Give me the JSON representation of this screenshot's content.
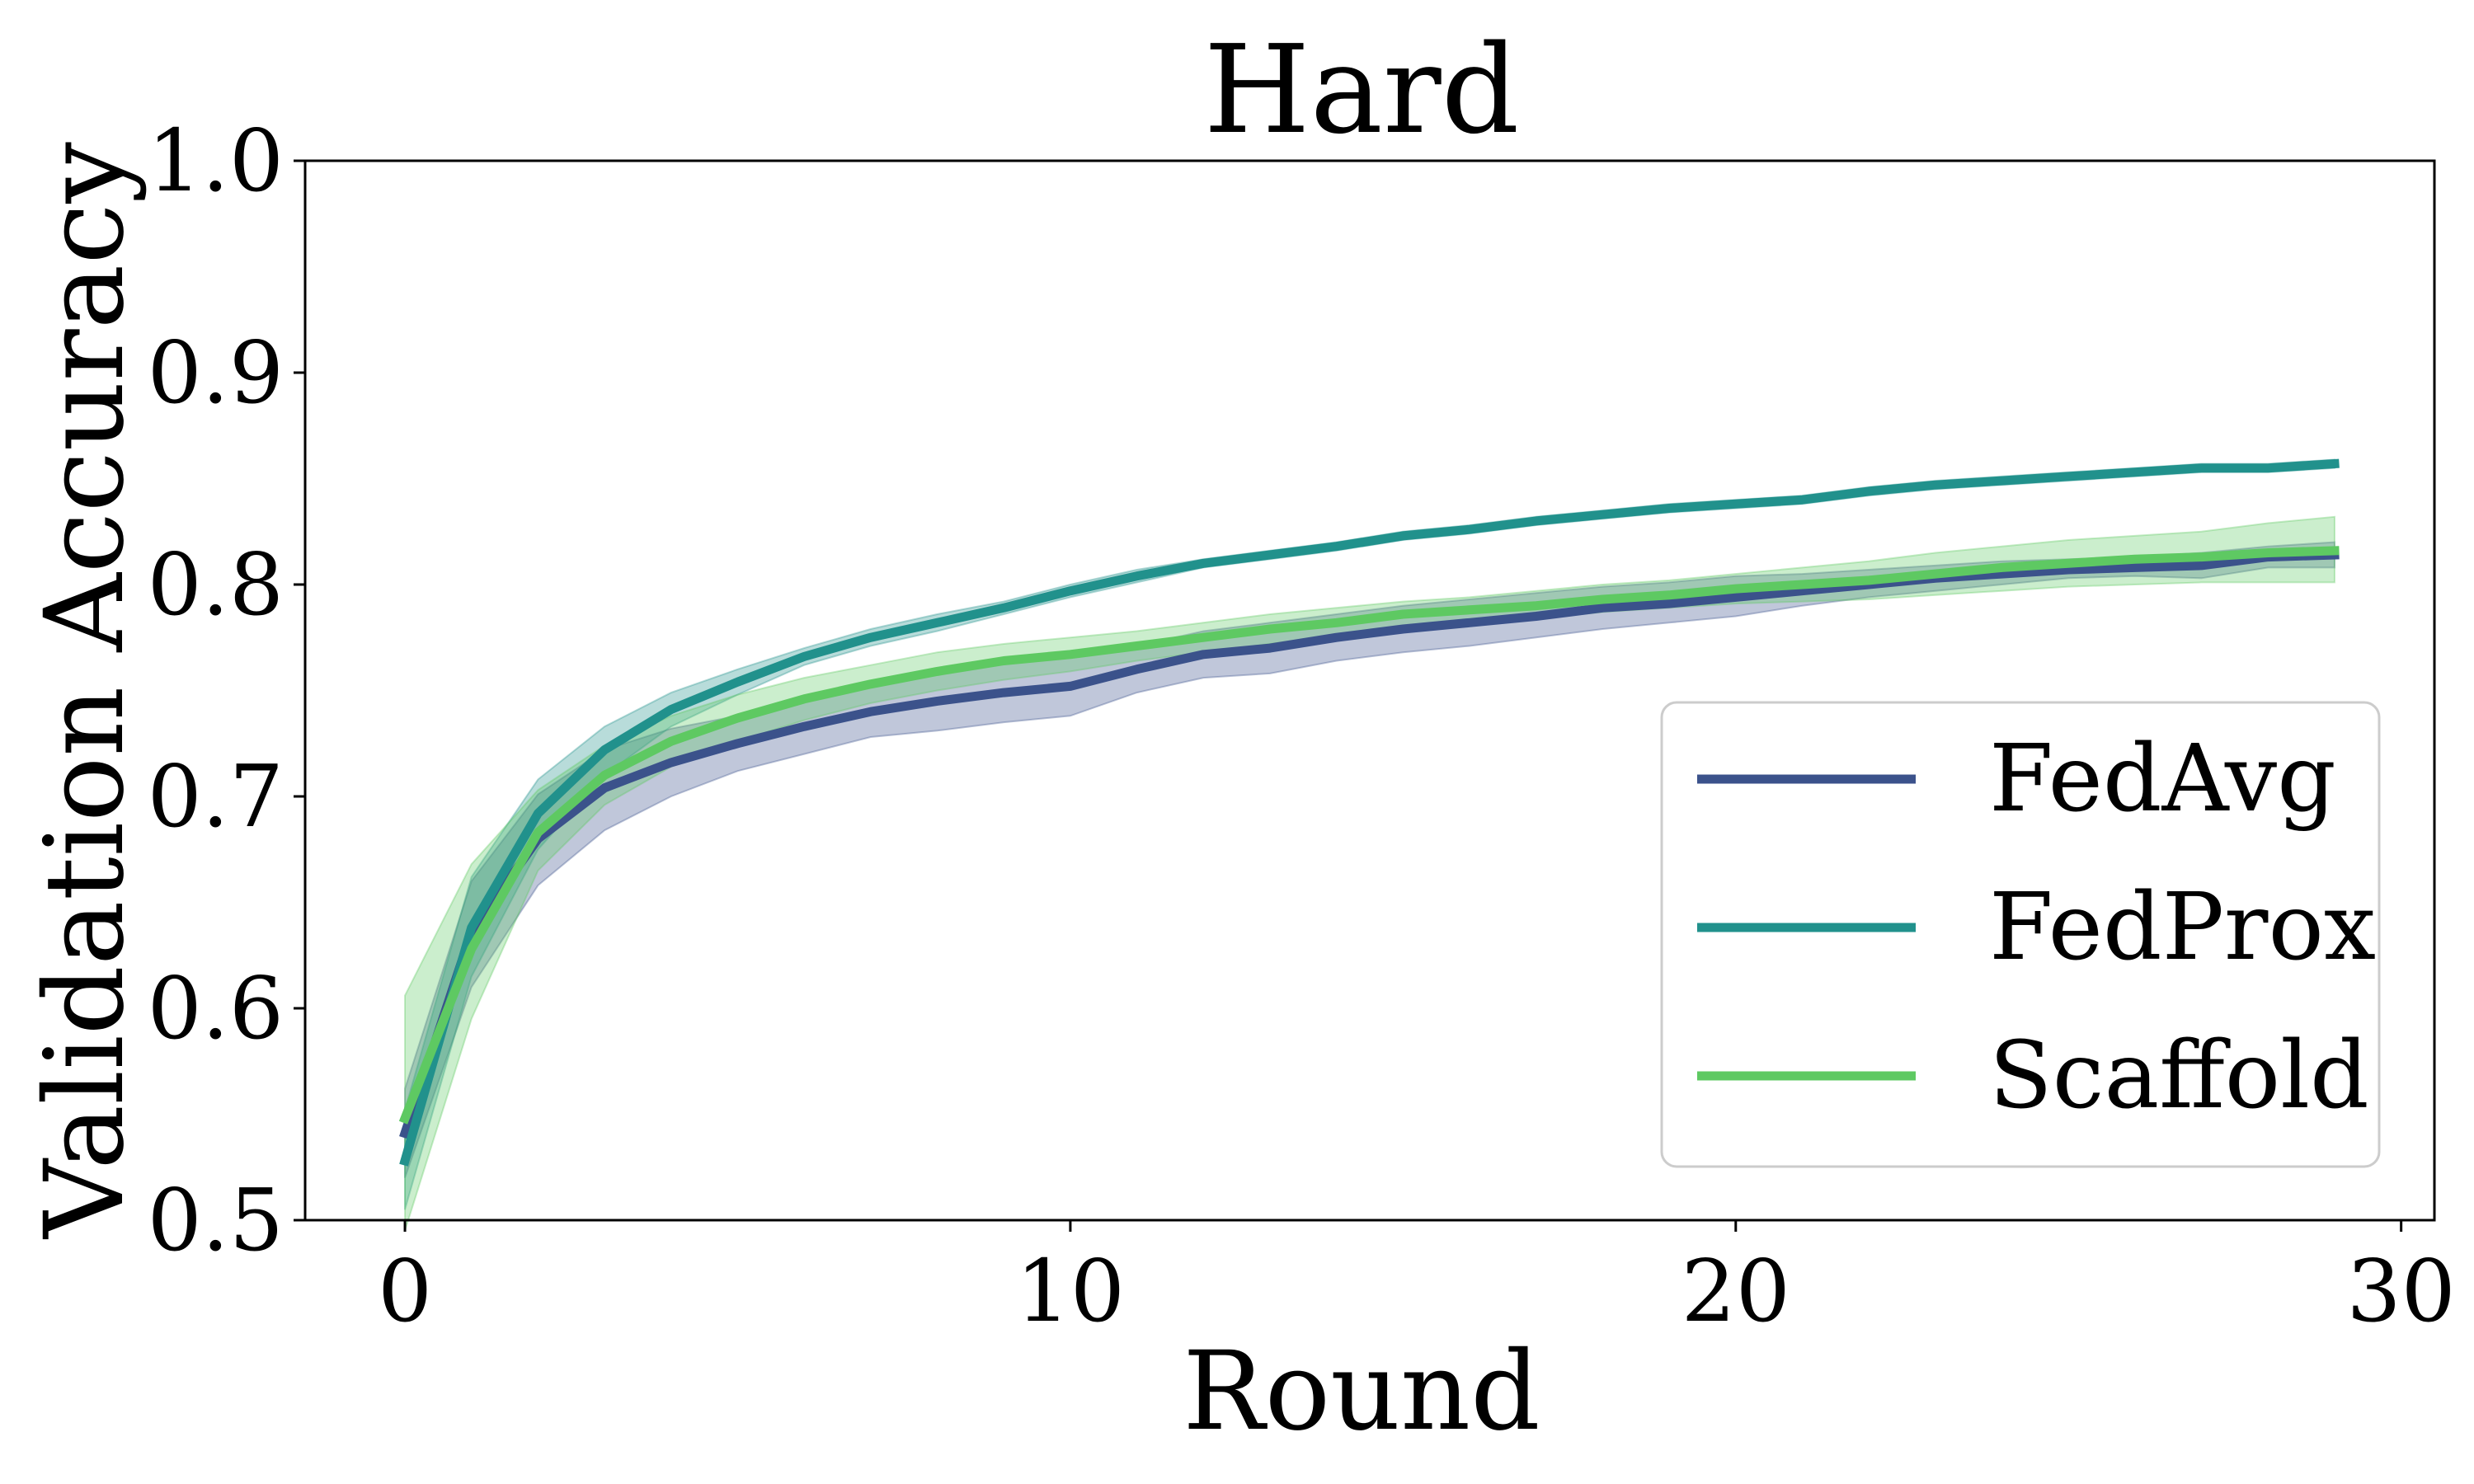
{
  "chart_data": {
    "type": "line",
    "title": "Hard",
    "xlabel": "Round",
    "ylabel": "Validation Accuracy",
    "xlim": [
      -1.5,
      30.5
    ],
    "ylim": [
      0.5,
      1.0
    ],
    "xticks": [
      0,
      10,
      20,
      30
    ],
    "xtick_labels": [
      "0",
      "10",
      "20",
      "30"
    ],
    "yticks": [
      0.5,
      0.6,
      0.7,
      0.8,
      0.9,
      1.0
    ],
    "ytick_labels": [
      "0.5",
      "0.6",
      "0.7",
      "0.8",
      "0.9",
      "1.0"
    ],
    "grid": false,
    "legend_position": "bottom-right",
    "x": [
      0,
      1,
      2,
      3,
      4,
      5,
      6,
      7,
      8,
      9,
      10,
      11,
      12,
      13,
      14,
      15,
      16,
      17,
      18,
      19,
      20,
      21,
      22,
      23,
      24,
      25,
      26,
      27,
      28,
      29
    ],
    "series": [
      {
        "name": "FedAvg",
        "color": "#3b528b",
        "values": [
          0.541,
          0.636,
          0.68,
          0.704,
          0.716,
          0.725,
          0.733,
          0.74,
          0.745,
          0.749,
          0.752,
          0.76,
          0.767,
          0.77,
          0.775,
          0.779,
          0.782,
          0.785,
          0.789,
          0.791,
          0.794,
          0.797,
          0.8,
          0.803,
          0.805,
          0.807,
          0.808,
          0.809,
          0.813,
          0.814
        ],
        "lower": [
          0.52,
          0.61,
          0.658,
          0.684,
          0.7,
          0.712,
          0.72,
          0.728,
          0.731,
          0.735,
          0.738,
          0.749,
          0.756,
          0.758,
          0.764,
          0.768,
          0.771,
          0.775,
          0.779,
          0.782,
          0.785,
          0.79,
          0.794,
          0.797,
          0.8,
          0.803,
          0.804,
          0.803,
          0.808,
          0.808
        ],
        "upper": [
          0.562,
          0.66,
          0.701,
          0.722,
          0.732,
          0.738,
          0.746,
          0.752,
          0.759,
          0.763,
          0.766,
          0.771,
          0.778,
          0.782,
          0.786,
          0.79,
          0.793,
          0.796,
          0.799,
          0.801,
          0.804,
          0.805,
          0.807,
          0.809,
          0.811,
          0.812,
          0.813,
          0.815,
          0.818,
          0.82
        ]
      },
      {
        "name": "FedProx",
        "color": "#21918c",
        "values": [
          0.528,
          0.638,
          0.692,
          0.722,
          0.741,
          0.754,
          0.766,
          0.775,
          0.782,
          0.789,
          0.797,
          0.804,
          0.81,
          0.814,
          0.818,
          0.823,
          0.826,
          0.83,
          0.833,
          0.836,
          0.838,
          0.84,
          0.844,
          0.847,
          0.849,
          0.851,
          0.853,
          0.855,
          0.855,
          0.857
        ],
        "lower": [
          0.505,
          0.615,
          0.675,
          0.71,
          0.733,
          0.748,
          0.762,
          0.771,
          0.778,
          0.786,
          0.794,
          0.801,
          0.808,
          0.812,
          0.816,
          0.821,
          0.824,
          0.828,
          0.831,
          0.834,
          0.836,
          0.838,
          0.842,
          0.845,
          0.847,
          0.849,
          0.851,
          0.853,
          0.853,
          0.855
        ],
        "upper": [
          0.552,
          0.662,
          0.708,
          0.733,
          0.749,
          0.76,
          0.77,
          0.779,
          0.786,
          0.792,
          0.8,
          0.807,
          0.812,
          0.816,
          0.82,
          0.825,
          0.828,
          0.832,
          0.835,
          0.838,
          0.84,
          0.842,
          0.846,
          0.849,
          0.851,
          0.853,
          0.855,
          0.857,
          0.857,
          0.859
        ]
      },
      {
        "name": "Scaffold",
        "color": "#5ec962",
        "values": [
          0.548,
          0.628,
          0.683,
          0.71,
          0.726,
          0.737,
          0.746,
          0.753,
          0.759,
          0.764,
          0.767,
          0.771,
          0.775,
          0.779,
          0.782,
          0.786,
          0.788,
          0.79,
          0.793,
          0.795,
          0.798,
          0.8,
          0.802,
          0.805,
          0.808,
          0.81,
          0.812,
          0.813,
          0.815,
          0.816
        ],
        "lower": [
          0.495,
          0.595,
          0.665,
          0.696,
          0.714,
          0.726,
          0.736,
          0.744,
          0.75,
          0.755,
          0.759,
          0.764,
          0.768,
          0.772,
          0.776,
          0.78,
          0.782,
          0.784,
          0.787,
          0.789,
          0.791,
          0.792,
          0.793,
          0.795,
          0.797,
          0.799,
          0.8,
          0.801,
          0.801,
          0.801
        ],
        "upper": [
          0.606,
          0.668,
          0.703,
          0.724,
          0.738,
          0.748,
          0.756,
          0.762,
          0.768,
          0.772,
          0.775,
          0.778,
          0.782,
          0.786,
          0.789,
          0.792,
          0.794,
          0.797,
          0.8,
          0.802,
          0.805,
          0.808,
          0.811,
          0.815,
          0.818,
          0.821,
          0.823,
          0.825,
          0.829,
          0.832
        ]
      }
    ]
  }
}
